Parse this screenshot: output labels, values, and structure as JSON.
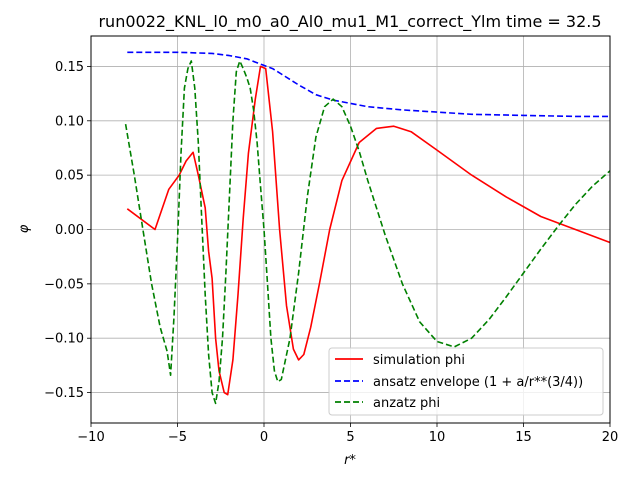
{
  "chart_data": {
    "type": "line",
    "title": "run0022_KNL_l0_m0_a0_Al0_mu1_M1_correct_Ylm time = 32.5",
    "xlabel": "r*",
    "ylabel": "φ",
    "xlim": [
      -10,
      20
    ],
    "ylim": [
      -0.178,
      0.178
    ],
    "xticks": [
      -10,
      -5,
      0,
      5,
      10,
      15,
      20
    ],
    "xtick_labels": [
      "−10",
      "−5",
      "0",
      "5",
      "10",
      "15",
      "20"
    ],
    "yticks": [
      -0.15,
      -0.1,
      -0.05,
      0.0,
      0.05,
      0.1,
      0.15
    ],
    "ytick_labels": [
      "−0.15",
      "−0.10",
      "−0.05",
      "0.00",
      "0.05",
      "0.10",
      "0.15"
    ],
    "grid": true,
    "legend_position": "lower-right",
    "series": [
      {
        "name": "simulation phi",
        "color": "#ff0000",
        "style": "solid",
        "x": [
          -7.9,
          -6.3,
          -5.5,
          -4.9,
          -4.5,
          -4.1,
          -3.8,
          -3.4,
          -3.2,
          -3.0,
          -2.8,
          -2.6,
          -2.3,
          -2.1,
          -1.8,
          -1.5,
          -1.2,
          -0.9,
          -0.5,
          -0.2,
          0.1,
          0.5,
          0.9,
          1.3,
          1.7,
          2.0,
          2.3,
          2.7,
          3.2,
          3.8,
          4.5,
          5.5,
          6.5,
          7.5,
          8.5,
          10.0,
          12.0,
          14.0,
          16.0,
          18.0,
          20.0
        ],
        "y": [
          0.019,
          0.0,
          0.037,
          0.05,
          0.063,
          0.071,
          0.05,
          0.02,
          -0.02,
          -0.045,
          -0.1,
          -0.13,
          -0.15,
          -0.152,
          -0.12,
          -0.06,
          0.01,
          0.07,
          0.12,
          0.15,
          0.148,
          0.09,
          0.0,
          -0.07,
          -0.11,
          -0.12,
          -0.115,
          -0.09,
          -0.05,
          0.0,
          0.045,
          0.08,
          0.093,
          0.095,
          0.09,
          0.073,
          0.05,
          0.03,
          0.012,
          0.0,
          -0.012
        ]
      },
      {
        "name": "ansatz envelope (1 + a/r**(3/4))",
        "color": "#0000ff",
        "style": "dashed",
        "x": [
          -7.9,
          -5.0,
          -3.0,
          -2.0,
          -1.0,
          -0.5,
          0.0,
          0.5,
          1.0,
          2.0,
          3.0,
          4.0,
          5.0,
          6.0,
          8.0,
          10.0,
          12.0,
          15.0,
          18.0,
          20.0
        ],
        "y": [
          0.163,
          0.163,
          0.162,
          0.16,
          0.157,
          0.154,
          0.151,
          0.148,
          0.143,
          0.133,
          0.124,
          0.119,
          0.116,
          0.113,
          0.11,
          0.108,
          0.106,
          0.105,
          0.104,
          0.104
        ]
      },
      {
        "name": "anzatz phi",
        "color": "#008000",
        "style": "dashed",
        "x": [
          -8.0,
          -7.5,
          -7.0,
          -6.5,
          -6.0,
          -5.6,
          -5.4,
          -5.2,
          -5.0,
          -4.8,
          -4.6,
          -4.4,
          -4.2,
          -4.0,
          -3.8,
          -3.6,
          -3.4,
          -3.2,
          -3.0,
          -2.8,
          -2.6,
          -2.4,
          -2.2,
          -2.0,
          -1.8,
          -1.6,
          -1.4,
          -1.2,
          -1.0,
          -0.8,
          -0.6,
          -0.4,
          -0.2,
          0.0,
          0.2,
          0.4,
          0.6,
          0.8,
          1.0,
          1.5,
          2.0,
          2.5,
          3.0,
          3.5,
          4.0,
          4.5,
          5.0,
          5.5,
          6.0,
          7.0,
          8.0,
          9.0,
          10.0,
          11.0,
          12.0,
          13.0,
          14.0,
          15.0,
          16.0,
          17.0,
          18.0,
          19.0,
          20.0
        ],
        "y": [
          0.097,
          0.05,
          0.0,
          -0.05,
          -0.09,
          -0.112,
          -0.134,
          -0.08,
          -0.01,
          0.07,
          0.13,
          0.148,
          0.155,
          0.13,
          0.08,
          0.01,
          -0.06,
          -0.115,
          -0.15,
          -0.16,
          -0.14,
          -0.1,
          -0.04,
          0.03,
          0.1,
          0.145,
          0.155,
          0.148,
          0.14,
          0.13,
          0.11,
          0.08,
          0.04,
          0.0,
          -0.05,
          -0.1,
          -0.13,
          -0.14,
          -0.138,
          -0.1,
          -0.04,
          0.03,
          0.085,
          0.113,
          0.12,
          0.113,
          0.095,
          0.072,
          0.045,
          -0.005,
          -0.05,
          -0.085,
          -0.103,
          -0.108,
          -0.1,
          -0.083,
          -0.062,
          -0.04,
          -0.018,
          0.003,
          0.023,
          0.04,
          0.054
        ]
      }
    ]
  }
}
